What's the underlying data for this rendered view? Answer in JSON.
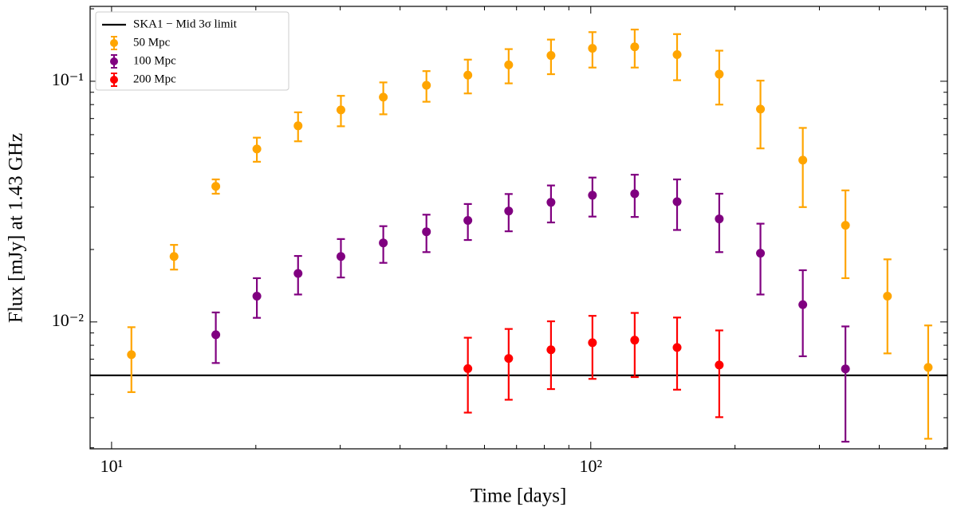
{
  "chart_data": {
    "type": "errorbar",
    "xlabel": "Time [days]",
    "ylabel": "Flux [mJy] at 1.43 GHz",
    "xscale": "log",
    "yscale": "log",
    "xlim": [
      9.02,
      555
    ],
    "ylim": [
      0.00297,
      0.2047
    ],
    "xticks": [
      {
        "value": 10,
        "label": "10¹"
      },
      {
        "value": 100,
        "label": "10²"
      }
    ],
    "yticks": [
      {
        "value": 0.01,
        "label": "10⁻²"
      },
      {
        "value": 0.1,
        "label": "10⁻¹"
      }
    ],
    "xminorticks": [
      20,
      30,
      40,
      50,
      60,
      70,
      80,
      90,
      200,
      300,
      400,
      500
    ],
    "yminorticks": [
      0.003,
      0.004,
      0.005,
      0.006,
      0.007,
      0.008,
      0.009,
      0.02,
      0.03,
      0.04,
      0.05,
      0.06,
      0.07,
      0.08,
      0.09,
      0.2
    ],
    "legend": "upper left",
    "hline": {
      "name": "SKA1 − Mid 3σ limit",
      "value": 0.006,
      "color": "#000000"
    },
    "series": [
      {
        "name": "50 Mpc",
        "color": "#ffa500",
        "x": [
          11.0,
          13.5,
          16.5,
          20.1,
          24.5,
          30.1,
          36.9,
          45.4,
          55.4,
          67.4,
          82.6,
          100.8,
          123.5,
          151.4,
          185.4,
          226,
          277,
          340,
          416,
          506
        ],
        "values": [
          0.00731,
          0.0187,
          0.0366,
          0.0523,
          0.0653,
          0.076,
          0.0859,
          0.0962,
          0.106,
          0.117,
          0.128,
          0.137,
          0.139,
          0.129,
          0.107,
          0.0766,
          0.047,
          0.0252,
          0.0128,
          0.00647
        ],
        "errors": [
          0.0022,
          0.0022,
          0.0025,
          0.006,
          0.009,
          0.011,
          0.013,
          0.014,
          0.017,
          0.019,
          0.021,
          0.023,
          0.025,
          0.028,
          0.027,
          0.024,
          0.017,
          0.01,
          0.0054,
          0.0032
        ]
      },
      {
        "name": "100 Mpc",
        "color": "#800080",
        "x": [
          16.5,
          20.1,
          24.5,
          30.1,
          36.9,
          45.4,
          55.4,
          67.4,
          82.6,
          100.8,
          123.5,
          151.4,
          185.4,
          226,
          277,
          340
        ],
        "values": [
          0.00885,
          0.0128,
          0.0159,
          0.0187,
          0.0213,
          0.0237,
          0.0264,
          0.0289,
          0.0314,
          0.0336,
          0.0341,
          0.0316,
          0.0268,
          0.0193,
          0.0118,
          0.00638
        ],
        "errors": [
          0.0021,
          0.0024,
          0.0029,
          0.0034,
          0.0037,
          0.0042,
          0.0045,
          0.0051,
          0.0055,
          0.0062,
          0.0068,
          0.0075,
          0.0073,
          0.0063,
          0.0046,
          0.0032
        ]
      },
      {
        "name": "200 Mpc",
        "color": "#ff0000",
        "x": [
          55.4,
          67.4,
          82.6,
          100.8,
          123.5,
          151.4,
          185.4
        ],
        "values": [
          0.0064,
          0.00705,
          0.00766,
          0.0082,
          0.0084,
          0.00783,
          0.00662
        ],
        "errors": [
          0.0022,
          0.0023,
          0.0024,
          0.0024,
          0.0025,
          0.0026,
          0.0026
        ]
      }
    ]
  }
}
